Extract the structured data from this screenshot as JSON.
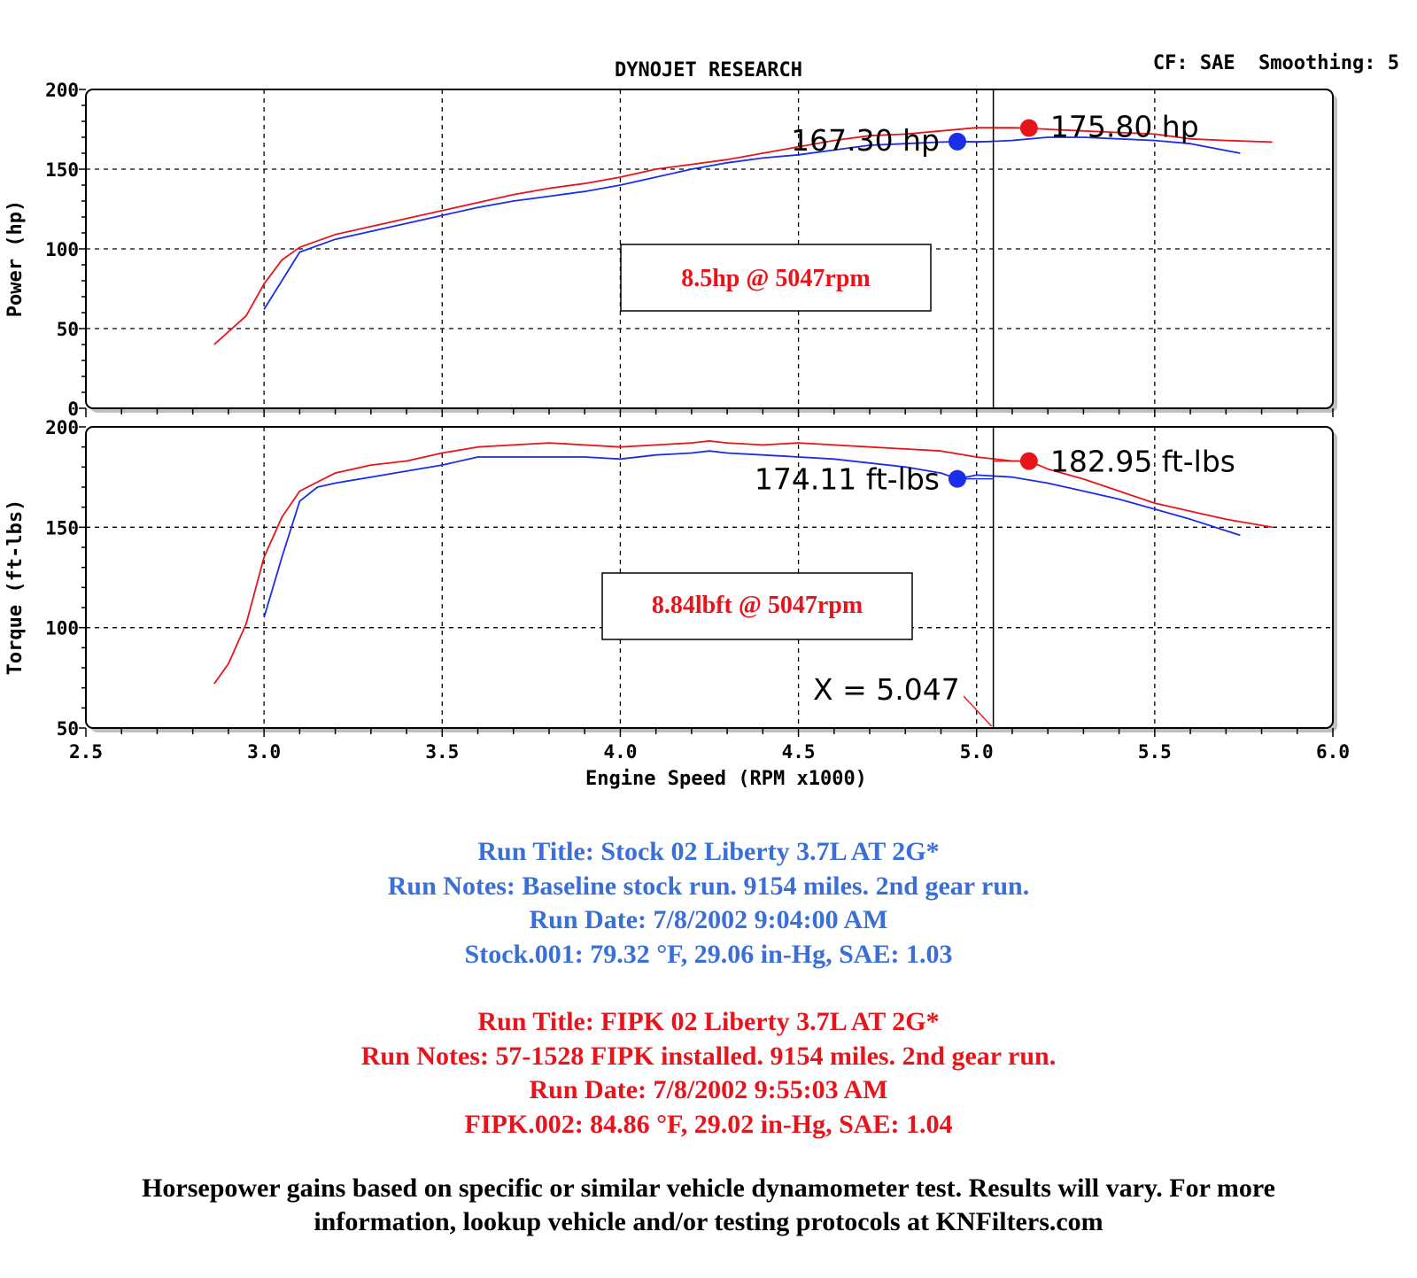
{
  "header": {
    "title": "DYNOJET RESEARCH",
    "settings": "CF: SAE  Smoothing: 5"
  },
  "colors": {
    "stock": "#1a2ee8",
    "fipk": "#e8141c",
    "stock_text": "#3a6fd8",
    "fipk_text": "#e8141c"
  },
  "chart_data": [
    {
      "type": "line",
      "xlabel": "Engine Speed (RPM x1000)",
      "ylabel": "Power (hp)",
      "xlim": [
        2.5,
        6.0
      ],
      "ylim": [
        0,
        200
      ],
      "x_ticks": [
        "2.5",
        "3.0",
        "3.5",
        "4.0",
        "4.5",
        "5.0",
        "5.5",
        "6.0"
      ],
      "y_ticks": [
        "0",
        "50",
        "100",
        "150",
        "200"
      ],
      "grid": true,
      "cursor_x": 5.047,
      "series": [
        {
          "key": "fipk",
          "points": [
            [
              2.86,
              40
            ],
            [
              2.9,
              48
            ],
            [
              2.95,
              58
            ],
            [
              3.0,
              78
            ],
            [
              3.05,
              93
            ],
            [
              3.1,
              101
            ],
            [
              3.2,
              109
            ],
            [
              3.3,
              114
            ],
            [
              3.4,
              119
            ],
            [
              3.5,
              124
            ],
            [
              3.6,
              129
            ],
            [
              3.7,
              134
            ],
            [
              3.8,
              138
            ],
            [
              3.9,
              141
            ],
            [
              4.0,
              145
            ],
            [
              4.1,
              150
            ],
            [
              4.2,
              153
            ],
            [
              4.3,
              156
            ],
            [
              4.4,
              160
            ],
            [
              4.5,
              164
            ],
            [
              4.6,
              168
            ],
            [
              4.7,
              171
            ],
            [
              4.8,
              172
            ],
            [
              4.9,
              174
            ],
            [
              5.0,
              176
            ],
            [
              5.1,
              176
            ],
            [
              5.147,
              175.8
            ],
            [
              5.2,
              175
            ],
            [
              5.3,
              174
            ],
            [
              5.4,
              173
            ],
            [
              5.5,
              172
            ],
            [
              5.6,
              169
            ],
            [
              5.7,
              168
            ],
            [
              5.83,
              167
            ]
          ]
        },
        {
          "key": "stock",
          "points": [
            [
              3.0,
              62
            ],
            [
              3.05,
              80
            ],
            [
              3.1,
              98
            ],
            [
              3.2,
              106
            ],
            [
              3.3,
              111
            ],
            [
              3.4,
              116
            ],
            [
              3.5,
              121
            ],
            [
              3.6,
              126
            ],
            [
              3.7,
              130
            ],
            [
              3.8,
              133
            ],
            [
              3.9,
              136
            ],
            [
              4.0,
              140
            ],
            [
              4.1,
              145
            ],
            [
              4.2,
              150
            ],
            [
              4.3,
              154
            ],
            [
              4.4,
              157
            ],
            [
              4.5,
              159
            ],
            [
              4.6,
              162
            ],
            [
              4.7,
              165
            ],
            [
              4.8,
              166
            ],
            [
              4.9,
              167
            ],
            [
              4.946,
              167.3
            ],
            [
              5.0,
              167
            ],
            [
              5.1,
              168
            ],
            [
              5.2,
              170
            ],
            [
              5.3,
              170
            ],
            [
              5.4,
              169
            ],
            [
              5.5,
              168
            ],
            [
              5.6,
              166
            ],
            [
              5.74,
              160
            ]
          ]
        }
      ],
      "peaks": [
        {
          "key": "stock",
          "x": 4.946,
          "y": 167.3,
          "label": "167.30 hp"
        },
        {
          "key": "fipk",
          "x": 5.147,
          "y": 175.8,
          "label": "175.80 hp"
        }
      ],
      "annotation": "8.5hp @ 5047rpm"
    },
    {
      "type": "line",
      "xlabel": "Engine Speed (RPM x1000)",
      "ylabel": "Torque (ft-lbs)",
      "xlim": [
        2.5,
        6.0
      ],
      "ylim": [
        50,
        200
      ],
      "x_ticks": [
        "2.5",
        "3.0",
        "3.5",
        "4.0",
        "4.5",
        "5.0",
        "5.5",
        "6.0"
      ],
      "y_ticks": [
        "50",
        "100",
        "150",
        "200"
      ],
      "grid": true,
      "cursor_x": 5.047,
      "series": [
        {
          "key": "fipk",
          "points": [
            [
              2.86,
              72
            ],
            [
              2.9,
              82
            ],
            [
              2.95,
              102
            ],
            [
              3.0,
              135
            ],
            [
              3.05,
              155
            ],
            [
              3.1,
              168
            ],
            [
              3.2,
              177
            ],
            [
              3.3,
              181
            ],
            [
              3.4,
              183
            ],
            [
              3.5,
              187
            ],
            [
              3.6,
              190
            ],
            [
              3.7,
              191
            ],
            [
              3.8,
              192
            ],
            [
              3.9,
              191
            ],
            [
              4.0,
              190
            ],
            [
              4.1,
              191
            ],
            [
              4.2,
              192
            ],
            [
              4.25,
              193
            ],
            [
              4.3,
              192
            ],
            [
              4.4,
              191
            ],
            [
              4.5,
              192
            ],
            [
              4.6,
              191
            ],
            [
              4.7,
              190
            ],
            [
              4.8,
              189
            ],
            [
              4.9,
              188
            ],
            [
              5.0,
              185
            ],
            [
              5.1,
              183
            ],
            [
              5.147,
              182.95
            ],
            [
              5.2,
              179
            ],
            [
              5.3,
              174
            ],
            [
              5.4,
              168
            ],
            [
              5.5,
              162
            ],
            [
              5.6,
              158
            ],
            [
              5.7,
              154
            ],
            [
              5.83,
              150
            ]
          ]
        },
        {
          "key": "stock",
          "points": [
            [
              3.0,
              105
            ],
            [
              3.05,
              135
            ],
            [
              3.1,
              163
            ],
            [
              3.15,
              170
            ],
            [
              3.2,
              172
            ],
            [
              3.3,
              175
            ],
            [
              3.4,
              178
            ],
            [
              3.5,
              181
            ],
            [
              3.6,
              185
            ],
            [
              3.7,
              185
            ],
            [
              3.8,
              185
            ],
            [
              3.9,
              185
            ],
            [
              4.0,
              184
            ],
            [
              4.1,
              186
            ],
            [
              4.2,
              187
            ],
            [
              4.25,
              188
            ],
            [
              4.3,
              187
            ],
            [
              4.4,
              186
            ],
            [
              4.5,
              185
            ],
            [
              4.6,
              184
            ],
            [
              4.7,
              182
            ],
            [
              4.8,
              180
            ],
            [
              4.9,
              177
            ],
            [
              4.946,
              174.11
            ],
            [
              5.0,
              176
            ],
            [
              5.1,
              175
            ],
            [
              5.2,
              172
            ],
            [
              5.3,
              168
            ],
            [
              5.4,
              164
            ],
            [
              5.5,
              159
            ],
            [
              5.6,
              154
            ],
            [
              5.74,
              146
            ]
          ]
        }
      ],
      "peaks": [
        {
          "key": "stock",
          "x": 4.946,
          "y": 174.11,
          "label": "174.11 ft-lbs"
        },
        {
          "key": "fipk",
          "x": 5.147,
          "y": 182.95,
          "label": "182.95 ft-lbs"
        }
      ],
      "annotation": "8.84lbft @ 5047rpm",
      "cursor_label": "X = 5.047"
    }
  ],
  "run_info": {
    "stock": [
      "Run Title: Stock 02 Liberty 3.7L AT 2G*",
      "Run Notes: Baseline stock run. 9154 miles. 2nd gear run.",
      "Run Date: 7/8/2002 9:04:00 AM",
      "Stock.001: 79.32 °F, 29.06 in-Hg, SAE: 1.03"
    ],
    "fipk": [
      "Run Title: FIPK 02 Liberty 3.7L AT 2G*",
      "Run Notes: 57-1528 FIPK installed. 9154 miles. 2nd gear run.",
      "Run Date: 7/8/2002 9:55:03 AM",
      "FIPK.002: 84.86 °F, 29.02 in-Hg, SAE: 1.04"
    ]
  },
  "disclaimer": "Horsepower gains based on specific or similar vehicle dynamometer test. Results will vary. For more information, lookup vehicle and/or testing protocols at KNFilters.com"
}
